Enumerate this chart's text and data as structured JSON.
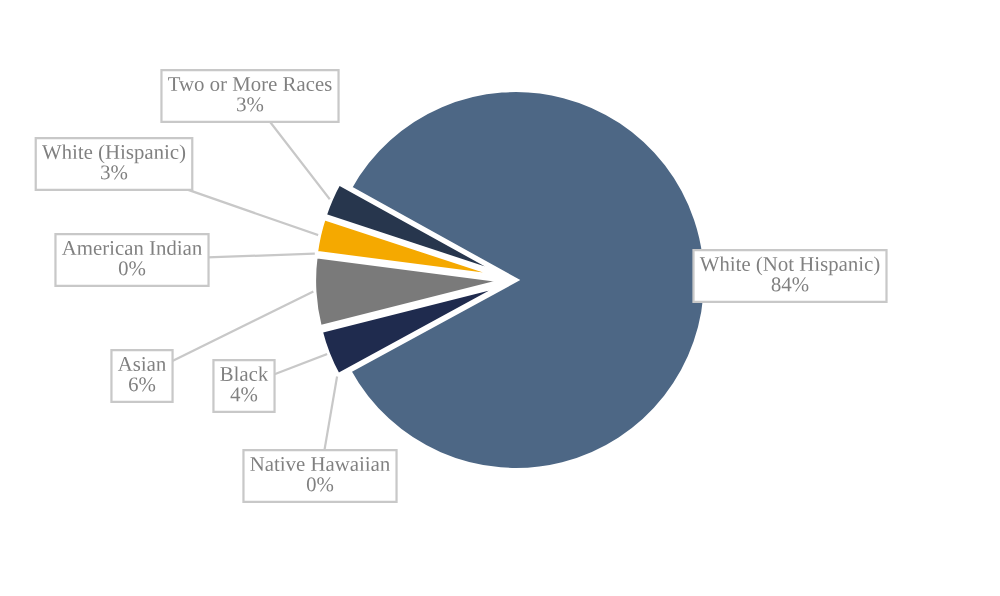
{
  "chart_data": {
    "type": "pie",
    "categories": [
      "Two or More Races",
      "White (Hispanic)",
      "American Indian",
      "Asian",
      "Black",
      "Native Hawaiian",
      "White (Not Hispanic)"
    ],
    "values": [
      3,
      3,
      0,
      6,
      4,
      0,
      84
    ],
    "colors": [
      "#27364d",
      "#f5a900",
      "#b0b0b0",
      "#7a7a7a",
      "#1f2b4e",
      "#c0c0c0",
      "#4d6785"
    ],
    "value_labels": [
      "3%",
      "3%",
      "0%",
      "6%",
      "4%",
      "0%",
      "84%"
    ]
  }
}
